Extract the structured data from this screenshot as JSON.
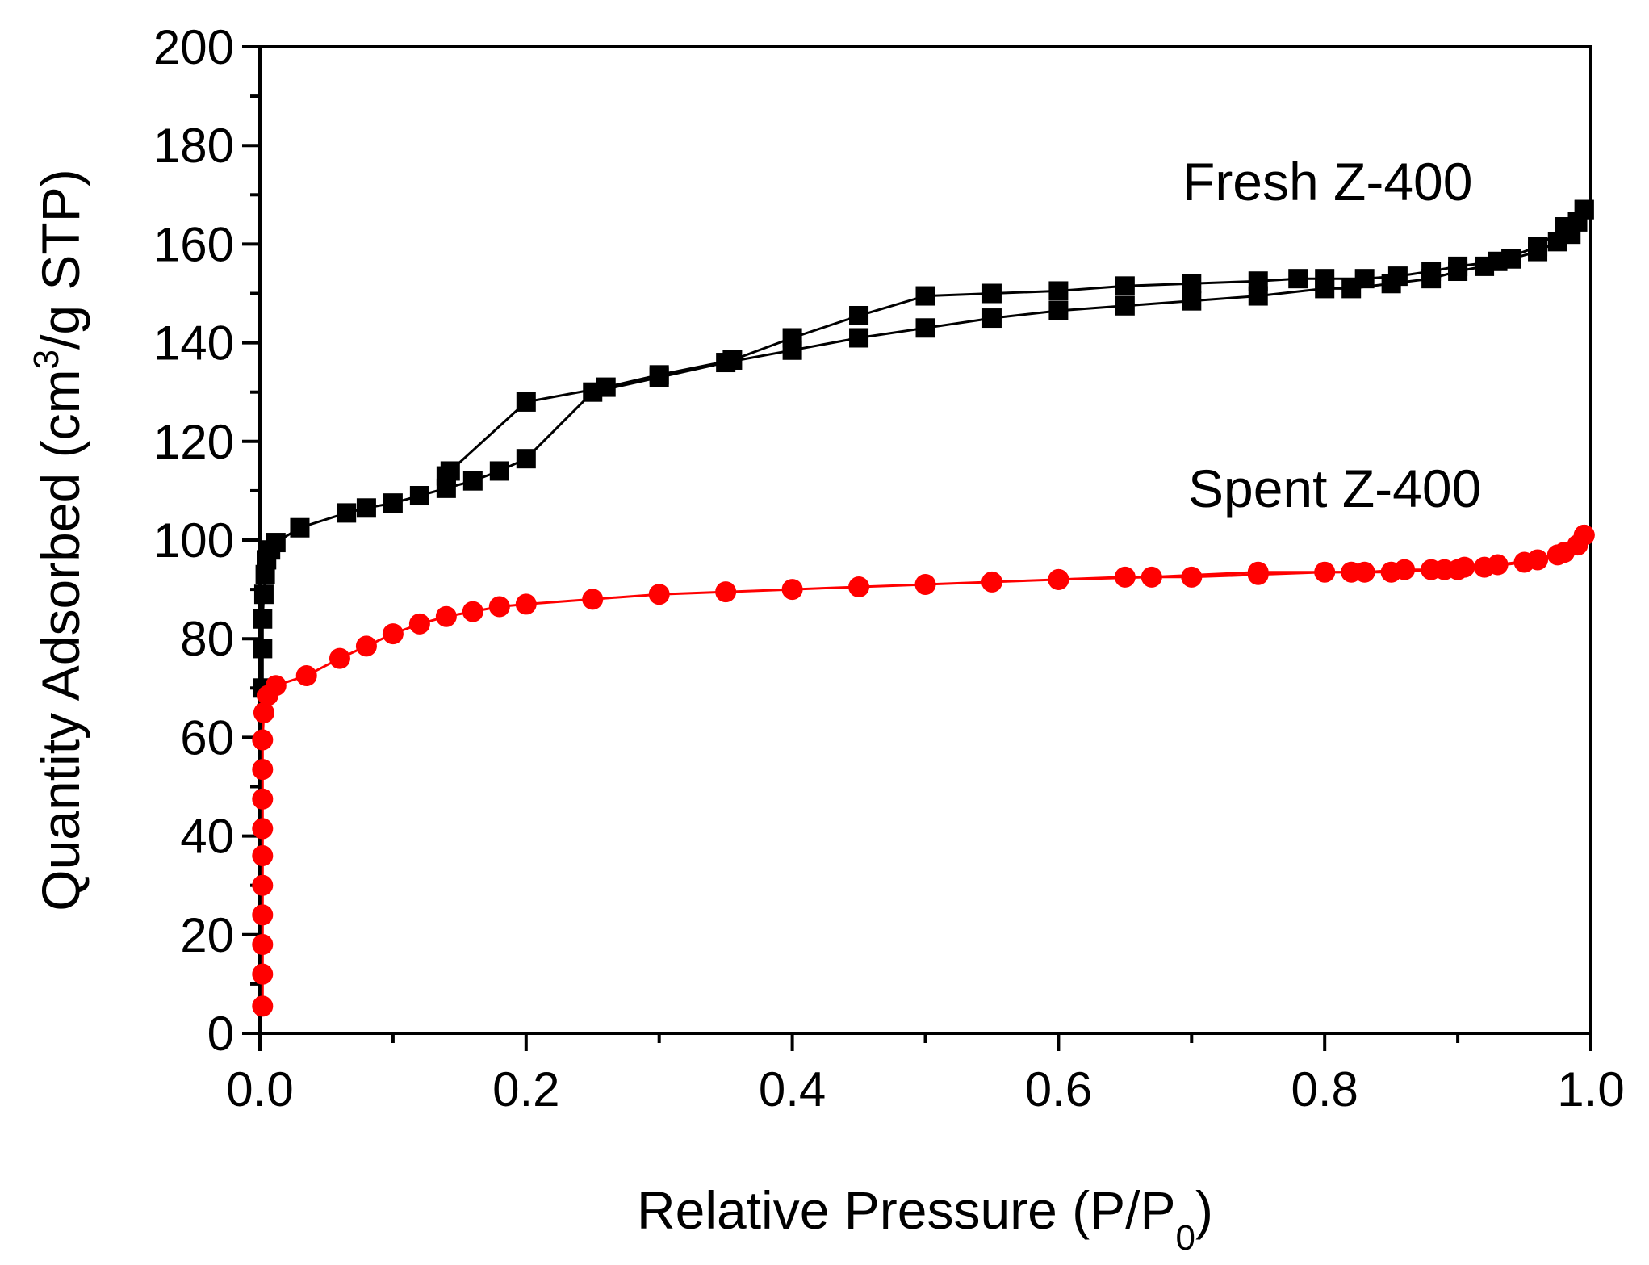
{
  "chart_data": {
    "type": "scatter",
    "title": "",
    "xlabel": {
      "main": "Relative Pressure (P/P",
      "sub": "0",
      "end": ")"
    },
    "ylabel": {
      "main": "Quantity Adsorbed (cm",
      "sup": "3",
      "end": "/g STP)"
    },
    "xlim": [
      0.0,
      1.0
    ],
    "ylim": [
      0,
      200
    ],
    "xticks": [
      0.0,
      0.2,
      0.4,
      0.6,
      0.8,
      1.0
    ],
    "xtick_labels": [
      "0.0",
      "0.2",
      "0.4",
      "0.6",
      "0.8",
      "1.0"
    ],
    "yticks": [
      0,
      20,
      40,
      60,
      80,
      100,
      120,
      140,
      160,
      180,
      200
    ],
    "ytick_labels": [
      "0",
      "20",
      "40",
      "60",
      "80",
      "100",
      "120",
      "140",
      "160",
      "180",
      "200"
    ],
    "grid": false,
    "series": [
      {
        "name": "Fresh Z-400",
        "color": "#000000",
        "marker": "square",
        "adsorption": [
          [
            0.002,
            70
          ],
          [
            0.002,
            78
          ],
          [
            0.002,
            84
          ],
          [
            0.003,
            89
          ],
          [
            0.004,
            93
          ],
          [
            0.005,
            96
          ],
          [
            0.008,
            98
          ],
          [
            0.012,
            99.5
          ],
          [
            0.03,
            102.5
          ],
          [
            0.065,
            105.5
          ],
          [
            0.08,
            106.5
          ],
          [
            0.1,
            107.5
          ],
          [
            0.12,
            109
          ],
          [
            0.14,
            110.5
          ],
          [
            0.16,
            112
          ],
          [
            0.18,
            114
          ],
          [
            0.2,
            116.5
          ],
          [
            0.25,
            130
          ],
          [
            0.3,
            133
          ],
          [
            0.35,
            136
          ],
          [
            0.4,
            138.5
          ],
          [
            0.45,
            141
          ],
          [
            0.5,
            143
          ],
          [
            0.55,
            145
          ],
          [
            0.6,
            146.5
          ],
          [
            0.65,
            147.5
          ],
          [
            0.7,
            148.5
          ],
          [
            0.75,
            149.5
          ],
          [
            0.8,
            151
          ],
          [
            0.82,
            151
          ],
          [
            0.85,
            152
          ],
          [
            0.88,
            153
          ],
          [
            0.9,
            154.5
          ],
          [
            0.92,
            155.5
          ],
          [
            0.94,
            157
          ],
          [
            0.96,
            158.5
          ],
          [
            0.975,
            160.5
          ],
          [
            0.985,
            162
          ],
          [
            0.99,
            164.5
          ],
          [
            0.995,
            167
          ]
        ],
        "desorption": [
          [
            0.995,
            167
          ],
          [
            0.98,
            163.5
          ],
          [
            0.96,
            159.5
          ],
          [
            0.93,
            156.5
          ],
          [
            0.9,
            155.5
          ],
          [
            0.88,
            154.5
          ],
          [
            0.855,
            153.5
          ],
          [
            0.83,
            153
          ],
          [
            0.8,
            153
          ],
          [
            0.78,
            153
          ],
          [
            0.75,
            152.5
          ],
          [
            0.7,
            152
          ],
          [
            0.65,
            151.5
          ],
          [
            0.6,
            150.5
          ],
          [
            0.55,
            150
          ],
          [
            0.5,
            149.5
          ],
          [
            0.45,
            145.5
          ],
          [
            0.4,
            141
          ],
          [
            0.355,
            136.5
          ],
          [
            0.3,
            133.5
          ],
          [
            0.26,
            131
          ],
          [
            0.2,
            128
          ],
          [
            0.143,
            114
          ],
          [
            0.14,
            113
          ]
        ]
      },
      {
        "name": "Spent Z-400",
        "color": "#ff0000",
        "marker": "circle",
        "adsorption": [
          [
            0.002,
            5.5
          ],
          [
            0.002,
            12
          ],
          [
            0.002,
            18
          ],
          [
            0.002,
            24
          ],
          [
            0.002,
            30
          ],
          [
            0.002,
            36
          ],
          [
            0.002,
            41.5
          ],
          [
            0.002,
            47.5
          ],
          [
            0.002,
            53.5
          ],
          [
            0.002,
            59.5
          ],
          [
            0.003,
            65
          ],
          [
            0.006,
            68.5
          ],
          [
            0.012,
            70.5
          ],
          [
            0.035,
            72.5
          ],
          [
            0.06,
            76
          ],
          [
            0.08,
            78.5
          ],
          [
            0.1,
            81
          ],
          [
            0.12,
            83
          ],
          [
            0.14,
            84.5
          ],
          [
            0.16,
            85.5
          ],
          [
            0.18,
            86.5
          ],
          [
            0.2,
            87
          ],
          [
            0.25,
            88
          ],
          [
            0.3,
            89
          ],
          [
            0.35,
            89.5
          ],
          [
            0.4,
            90
          ],
          [
            0.45,
            90.5
          ],
          [
            0.5,
            91
          ],
          [
            0.55,
            91.5
          ],
          [
            0.6,
            92
          ],
          [
            0.65,
            92.5
          ],
          [
            0.7,
            92.5
          ],
          [
            0.75,
            93
          ],
          [
            0.8,
            93.5
          ],
          [
            0.82,
            93.5
          ],
          [
            0.85,
            93.5
          ],
          [
            0.88,
            94
          ],
          [
            0.9,
            94
          ],
          [
            0.92,
            94.5
          ],
          [
            0.95,
            95.5
          ],
          [
            0.975,
            97
          ],
          [
            0.99,
            99
          ],
          [
            0.995,
            101
          ]
        ],
        "desorption": [
          [
            0.995,
            101
          ],
          [
            0.98,
            97.5
          ],
          [
            0.96,
            96
          ],
          [
            0.93,
            95
          ],
          [
            0.905,
            94.5
          ],
          [
            0.89,
            94
          ],
          [
            0.86,
            94
          ],
          [
            0.83,
            93.5
          ],
          [
            0.75,
            93.5
          ],
          [
            0.67,
            92.5
          ],
          [
            0.6,
            92
          ]
        ]
      }
    ],
    "annotations": [
      {
        "text": "Fresh Z-400",
        "x": 0.83,
        "y": 173
      },
      {
        "text": "Spent Z-400",
        "x": 0.83,
        "y": 110
      }
    ]
  }
}
